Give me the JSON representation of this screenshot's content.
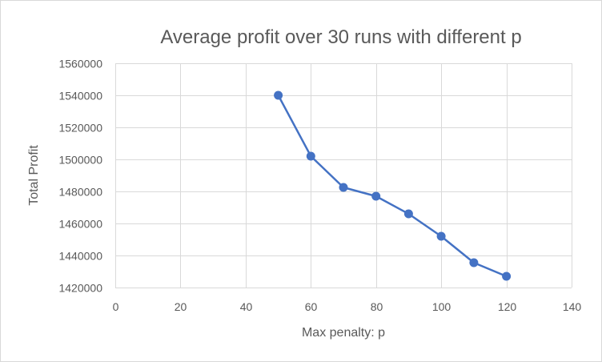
{
  "chart_data": {
    "type": "line",
    "title": "Average profit over 30 runs with different p",
    "xlabel": "Max penalty: p",
    "ylabel": "Total Profit",
    "xlim": [
      0,
      140
    ],
    "ylim": [
      1420000,
      1560000
    ],
    "x_ticks": [
      0,
      20,
      40,
      60,
      80,
      100,
      120,
      140
    ],
    "y_ticks": [
      1420000,
      1440000,
      1460000,
      1480000,
      1500000,
      1520000,
      1540000,
      1560000
    ],
    "grid": true,
    "legend": "none",
    "series": [
      {
        "x": [
          50,
          60,
          70,
          80,
          90,
          100,
          110,
          120
        ],
        "values": [
          1540000,
          1502000,
          1482500,
          1477000,
          1466000,
          1452000,
          1435500,
          1427000
        ],
        "color": "#4472c4",
        "marker": "circle"
      }
    ]
  }
}
